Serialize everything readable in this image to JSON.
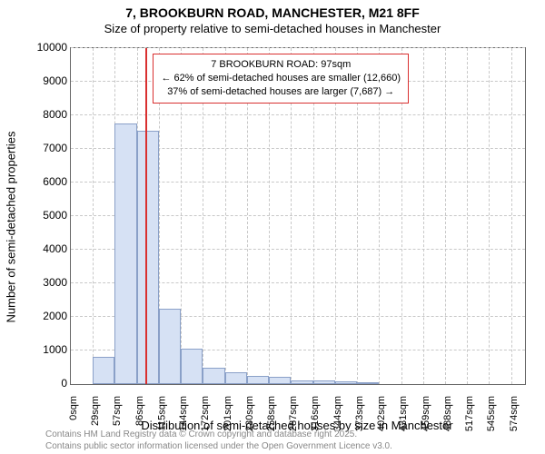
{
  "chart": {
    "type": "histogram",
    "title_main": "7, BROOKBURN ROAD, MANCHESTER, M21 8FF",
    "title_sub": "Size of property relative to semi-detached houses in Manchester",
    "title_fontsize_main": 14,
    "title_fontsize_sub": 13,
    "ylabel": "Number of semi-detached properties",
    "xlabel": "Distribution of semi-detached houses by size in Manchester",
    "label_fontsize": 13,
    "background_color": "#ffffff",
    "grid_color": "#c8c8c8",
    "border_color": "#666666",
    "bar_fill": "#d6e1f4",
    "bar_border": "#8aa0c8",
    "marker_color": "#d93030",
    "xlim": [
      0,
      588
    ],
    "ylim": [
      0,
      10000
    ],
    "ytick_step": 1000,
    "xtick_labels": [
      "0sqm",
      "29sqm",
      "57sqm",
      "86sqm",
      "115sqm",
      "144sqm",
      "172sqm",
      "201sqm",
      "230sqm",
      "258sqm",
      "287sqm",
      "316sqm",
      "344sqm",
      "373sqm",
      "402sqm",
      "431sqm",
      "459sqm",
      "488sqm",
      "517sqm",
      "545sqm",
      "574sqm"
    ],
    "bin_width_sqm": 28.5,
    "bar_values": [
      0,
      800,
      7750,
      7550,
      2250,
      1050,
      480,
      360,
      250,
      220,
      120,
      110,
      80,
      60,
      0,
      0,
      0,
      0,
      0,
      0
    ],
    "marker_value_sqm": 97,
    "annotation": {
      "line1": "7 BROOKBURN ROAD: 97sqm",
      "line2": "← 62% of semi-detached houses are smaller (12,660)",
      "line3": "37% of semi-detached houses are larger (7,687) →"
    },
    "footnote_line1": "Contains HM Land Registry data © Crown copyright and database right 2025.",
    "footnote_line2": "Contains public sector information licensed under the Open Government Licence v3.0.",
    "footnote_color": "#888888"
  }
}
